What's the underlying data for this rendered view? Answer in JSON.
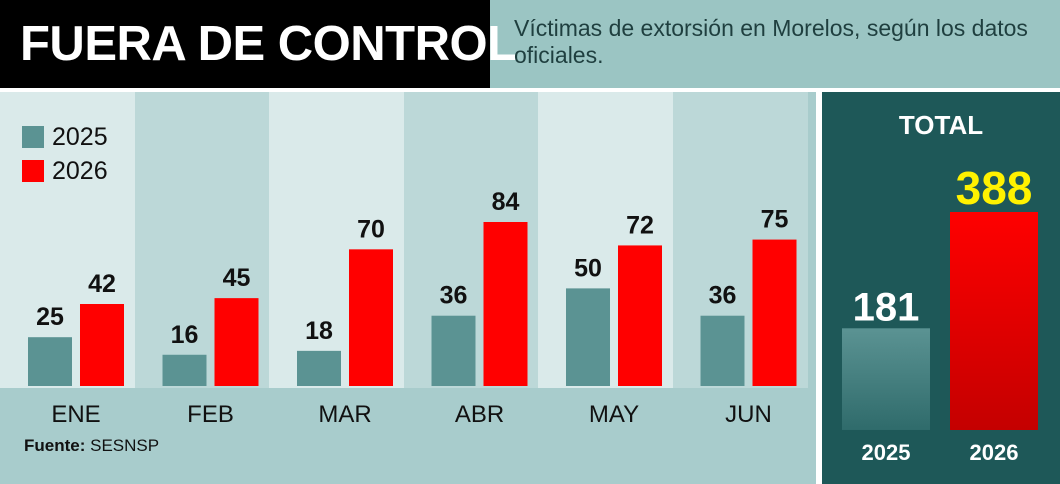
{
  "headline": "FUERA DE CONTROL",
  "subtitle": "Víctimas de extorsión en Morelos, según los datos oficiales.",
  "source": {
    "label": "Fuente:",
    "text": "SESNSP"
  },
  "colors": {
    "series_2025": "#5b9393",
    "series_2026": "#ff0000",
    "highlight_value": "#fff200"
  },
  "chart_data": [
    {
      "type": "bar",
      "categories": [
        "ENE",
        "FEB",
        "MAR",
        "ABR",
        "MAY",
        "JUN"
      ],
      "series": [
        {
          "name": "2025",
          "values": [
            25,
            16,
            18,
            36,
            50,
            36
          ]
        },
        {
          "name": "2026",
          "values": [
            42,
            45,
            70,
            84,
            72,
            75
          ]
        }
      ],
      "ylim": [
        0,
        90
      ],
      "grid": false,
      "legend": "top-left"
    },
    {
      "type": "bar",
      "title": "TOTAL",
      "categories": [
        "2025",
        "2026"
      ],
      "values": [
        181,
        388
      ],
      "ylim": [
        0,
        430
      ]
    }
  ]
}
